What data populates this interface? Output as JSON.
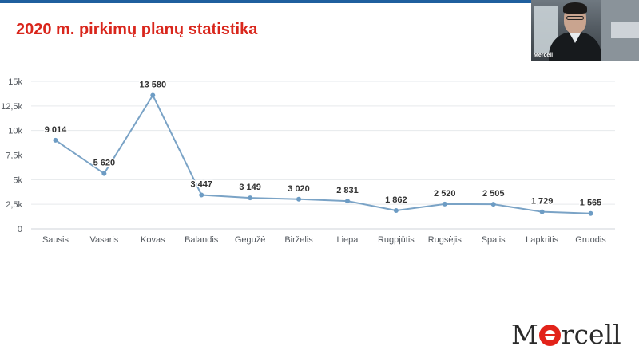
{
  "slide": {
    "title": "2020 m. pirkimų planų statistika"
  },
  "video": {
    "participant_name": "Mercell"
  },
  "logo": {
    "text_before": "M",
    "text_after": "rcell",
    "accent_color": "#e2231a"
  },
  "colors": {
    "title": "#d9261c",
    "line": "#7aa3c6",
    "point": "#6d9cc4",
    "top_bar": "#1f5f9e"
  },
  "chart_data": {
    "type": "line",
    "categories": [
      "Sausis",
      "Vasaris",
      "Kovas",
      "Balandis",
      "Gegužė",
      "Birželis",
      "Liepa",
      "Rugpjūtis",
      "Rugsėjis",
      "Spalis",
      "Lapkritis",
      "Gruodis"
    ],
    "values": [
      9014,
      5620,
      13580,
      3447,
      3149,
      3020,
      2831,
      1862,
      2520,
      2505,
      1729,
      1565
    ],
    "data_labels": [
      "9 014",
      "5 620",
      "13 580",
      "3 447",
      "3 149",
      "3 020",
      "2 831",
      "1 862",
      "2 520",
      "2 505",
      "1 729",
      "1 565"
    ],
    "yticks": [
      0,
      2500,
      5000,
      7500,
      10000,
      12500,
      15000
    ],
    "ytick_labels": [
      "0",
      "2,5k",
      "5k",
      "7,5k",
      "10k",
      "12,5k",
      "15k"
    ],
    "ylim": [
      0,
      15000
    ],
    "title": "",
    "xlabel": "",
    "ylabel": "",
    "grid": true,
    "legend": "none"
  }
}
